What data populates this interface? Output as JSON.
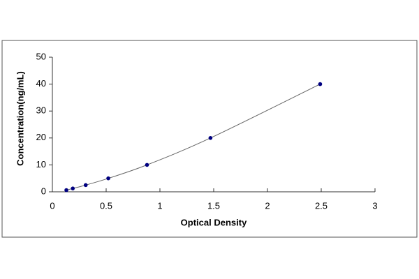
{
  "chart_data": {
    "type": "scatter",
    "x_label": "Optical Density",
    "y_label": "Concentration(ng/mL)",
    "x": [
      0.13,
      0.19,
      0.31,
      0.52,
      0.88,
      1.47,
      2.49
    ],
    "values": [
      0.625,
      1.25,
      2.5,
      5,
      10,
      20,
      40
    ],
    "color": "#000080",
    "line_color": "#666666",
    "fit_line": true,
    "xlim": [
      0,
      3
    ],
    "xticks": [
      0,
      0.5,
      1,
      1.5,
      2,
      2.5,
      3
    ],
    "ylim": [
      0,
      50
    ],
    "yticks": [
      0,
      10,
      20,
      30,
      40,
      50
    ],
    "grid": false
  }
}
